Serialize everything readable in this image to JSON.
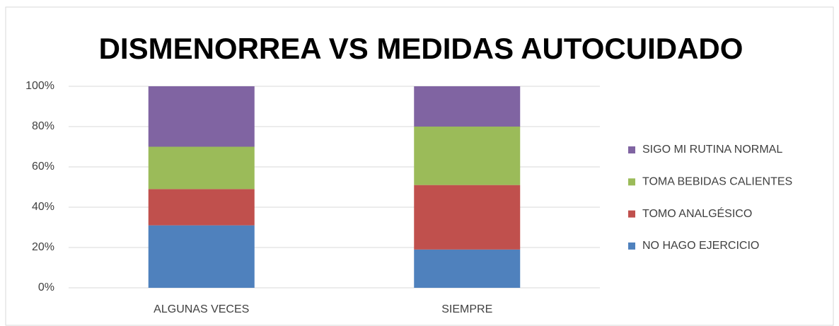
{
  "chart_data": {
    "type": "stacked_bar",
    "title": "DISMENORREA VS MEDIDAS AUTOCUIDADO",
    "categories": [
      "ALGUNAS VECES",
      "SIEMPRE"
    ],
    "series": [
      {
        "name": "NO HAGO EJERCICIO",
        "color": "#4f81bd",
        "values": [
          31,
          19
        ]
      },
      {
        "name": "TOMO ANALGÉSICO",
        "color": "#c0504d",
        "values": [
          18,
          32
        ]
      },
      {
        "name": "TOMA BEBIDAS CALIENTES",
        "color": "#9bbb59",
        "values": [
          21,
          29
        ]
      },
      {
        "name": "SIGO MI RUTINA NORMAL",
        "color": "#8064a2",
        "values": [
          30,
          20
        ]
      }
    ],
    "ylim": [
      0,
      100
    ],
    "yticks": [
      {
        "value": 0,
        "label": "0%"
      },
      {
        "value": 20,
        "label": "20%"
      },
      {
        "value": 40,
        "label": "40%"
      },
      {
        "value": 60,
        "label": "60%"
      },
      {
        "value": 80,
        "label": "80%"
      },
      {
        "value": 100,
        "label": "100%"
      }
    ],
    "grid": true,
    "legend": "right"
  }
}
